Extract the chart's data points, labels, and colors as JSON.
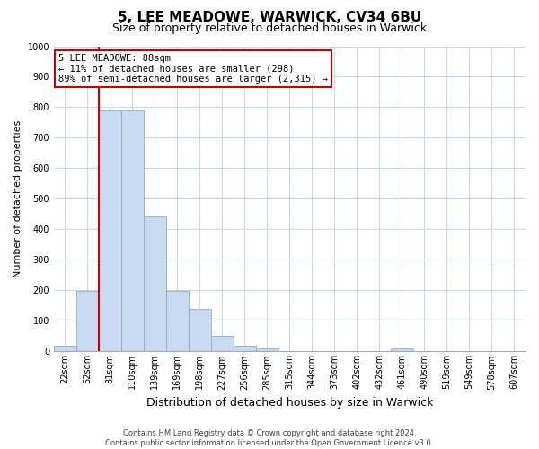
{
  "title": "5, LEE MEADOWE, WARWICK, CV34 6BU",
  "subtitle": "Size of property relative to detached houses in Warwick",
  "xlabel": "Distribution of detached houses by size in Warwick",
  "ylabel": "Number of detached properties",
  "bar_labels": [
    "22sqm",
    "52sqm",
    "81sqm",
    "110sqm",
    "139sqm",
    "169sqm",
    "198sqm",
    "227sqm",
    "256sqm",
    "285sqm",
    "315sqm",
    "344sqm",
    "373sqm",
    "402sqm",
    "432sqm",
    "461sqm",
    "490sqm",
    "519sqm",
    "549sqm",
    "578sqm",
    "607sqm"
  ],
  "bar_values": [
    20,
    197,
    790,
    790,
    443,
    197,
    140,
    50,
    20,
    10,
    0,
    0,
    0,
    0,
    0,
    10,
    0,
    0,
    0,
    0,
    0
  ],
  "bar_color": "#c8daf0",
  "bar_edge_color": "#8ab0d0",
  "vline_x_index": 2,
  "vline_color": "#cc0000",
  "ylim": [
    0,
    1000
  ],
  "yticks": [
    0,
    100,
    200,
    300,
    400,
    500,
    600,
    700,
    800,
    900,
    1000
  ],
  "annotation_title": "5 LEE MEADOWE: 88sqm",
  "annotation_line1": "← 11% of detached houses are smaller (298)",
  "annotation_line2": "89% of semi-detached houses are larger (2,315) →",
  "annotation_box_facecolor": "#ffffff",
  "annotation_box_edgecolor": "#cc0000",
  "footer1": "Contains HM Land Registry data © Crown copyright and database right 2024.",
  "footer2": "Contains public sector information licensed under the Open Government Licence v3.0.",
  "background_color": "#ffffff",
  "grid_color": "#c8d8e8",
  "title_fontsize": 11,
  "subtitle_fontsize": 9,
  "ylabel_fontsize": 8,
  "xlabel_fontsize": 9,
  "tick_fontsize": 7,
  "annotation_fontsize": 7.5,
  "footer_fontsize": 6
}
